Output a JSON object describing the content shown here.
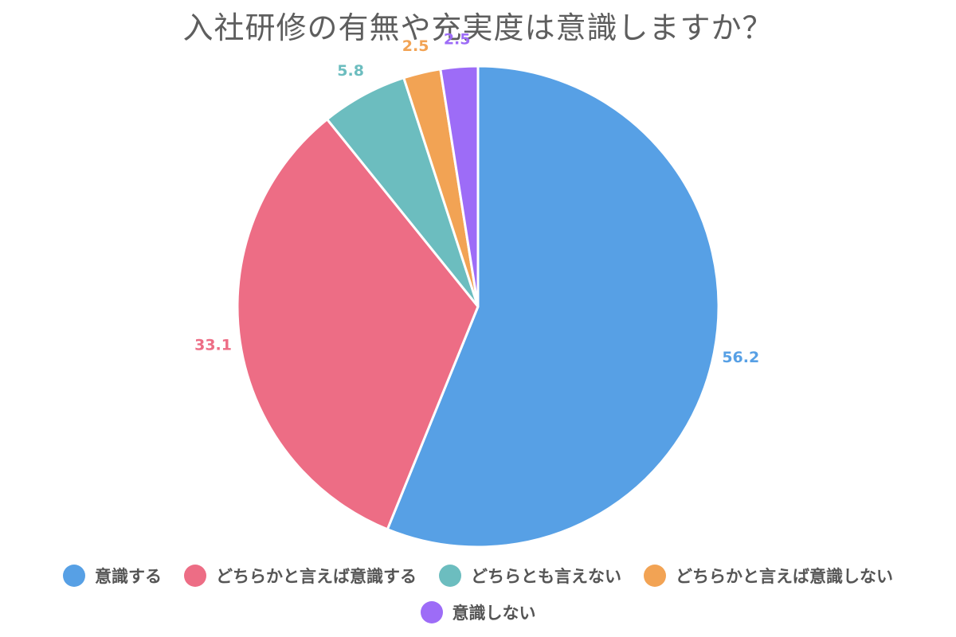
{
  "chart_data": {
    "type": "pie",
    "title": "入社研修の有無や充実度は意識しますか？",
    "categories": [
      "意識する",
      "どちらかと言えば意識する",
      "どちらとも言えない",
      "どちらかと言えば意識しない",
      "意識しない"
    ],
    "values": [
      56.2,
      33.1,
      5.8,
      2.5,
      2.5
    ],
    "value_labels": [
      "56.2",
      "33.1",
      "5.8",
      "2.5",
      "2.5"
    ],
    "colors": [
      "#57a0e5",
      "#ed6d85",
      "#6cbdbf",
      "#f2a354",
      "#9d6cf7"
    ],
    "legend_position": "bottom"
  }
}
